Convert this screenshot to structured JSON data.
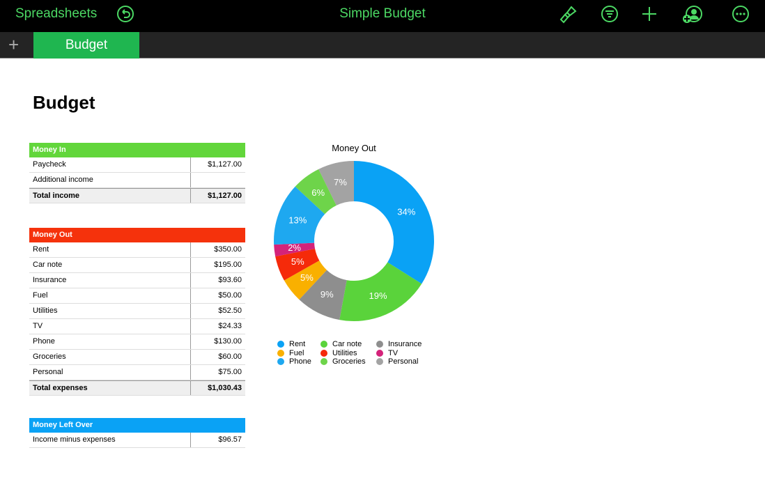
{
  "topbar": {
    "app_name": "Spreadsheets",
    "title": "Simple Budget"
  },
  "tabs": [
    {
      "label": "Budget"
    }
  ],
  "sheet_title": "Budget",
  "money_in": {
    "header": "Money In",
    "color": "#62d63b",
    "rows": [
      {
        "label": "Paycheck",
        "value": "$1,127.00"
      },
      {
        "label": "Additional income",
        "value": ""
      }
    ],
    "total": {
      "label": "Total income",
      "value": "$1,127.00"
    }
  },
  "money_out": {
    "header": "Money Out",
    "color": "#f5320c",
    "rows": [
      {
        "label": "Rent",
        "value": "$350.00"
      },
      {
        "label": "Car note",
        "value": "$195.00"
      },
      {
        "label": "Insurance",
        "value": "$93.60"
      },
      {
        "label": "Fuel",
        "value": "$50.00"
      },
      {
        "label": "Utilities",
        "value": "$52.50"
      },
      {
        "label": "TV",
        "value": "$24.33"
      },
      {
        "label": "Phone",
        "value": "$130.00"
      },
      {
        "label": "Groceries",
        "value": "$60.00"
      },
      {
        "label": "Personal",
        "value": "$75.00"
      }
    ],
    "total": {
      "label": "Total expenses",
      "value": "$1,030.43"
    }
  },
  "money_left": {
    "header": "Money Left Over",
    "color": "#0aa2f5",
    "rows": [
      {
        "label": "Income minus expenses",
        "value": "$96.57"
      }
    ]
  },
  "chart_data": {
    "type": "pie",
    "title": "Money Out",
    "donut": true,
    "categories": [
      "Rent",
      "Car note",
      "Insurance",
      "Fuel",
      "Utilities",
      "TV",
      "Phone",
      "Groceries",
      "Personal"
    ],
    "values": [
      350,
      195,
      93.6,
      50,
      52.5,
      24.33,
      130,
      60,
      75
    ],
    "labels": [
      "34%",
      "19%",
      "9%",
      "5%",
      "5%",
      "2%",
      "13%",
      "6%",
      "7%"
    ],
    "colors": [
      "#0aa2f5",
      "#5ad33b",
      "#8e8e8e",
      "#f9b000",
      "#f52a0a",
      "#d4237a",
      "#1ea8f0",
      "#6ed44a",
      "#a3a3a3"
    ],
    "legend_order": [
      0,
      1,
      2,
      3,
      4,
      5,
      6,
      7,
      8
    ],
    "legend": "bottom"
  }
}
